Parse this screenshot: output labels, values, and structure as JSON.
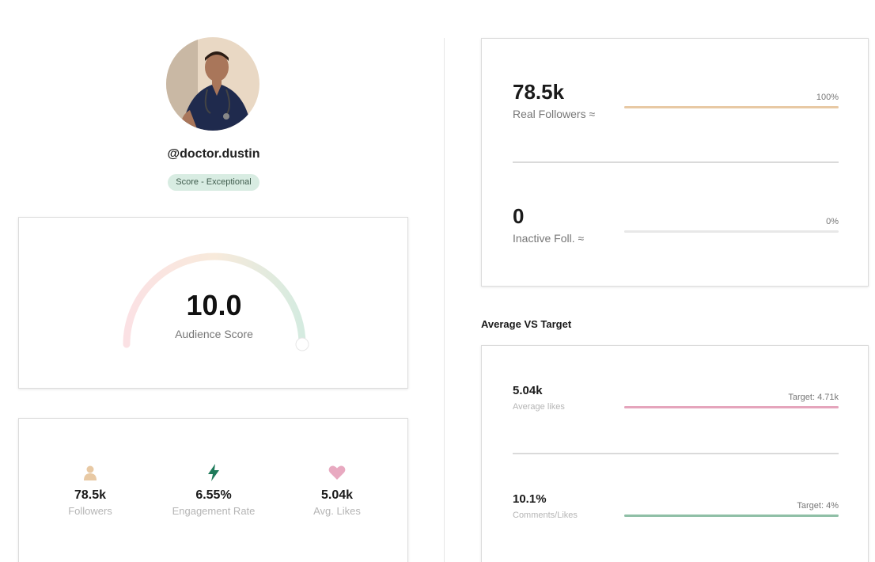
{
  "profile": {
    "handle": "@doctor.dustin",
    "score_badge": "Score - Exceptional"
  },
  "audience": {
    "score": "10.0",
    "label": "Audience Score",
    "level": 1.0
  },
  "stats": [
    {
      "value": "78.5k",
      "label": "Followers",
      "icon": "person-icon",
      "color": "#e8c9a4"
    },
    {
      "value": "6.55%",
      "label": "Engagement Rate",
      "icon": "lightning-icon",
      "color": "#1e7a5a"
    },
    {
      "value": "5.04k",
      "label": "Avg. Likes",
      "icon": "heart-icon",
      "color": "#e8a9c0"
    }
  ],
  "followers": {
    "real": {
      "value": "78.5k",
      "label": "Real Followers ≈",
      "percent_label": "100%",
      "fill": 1.0,
      "color": "#e8c9a4"
    },
    "inactive": {
      "value": "0",
      "label": "Inactive Foll. ≈",
      "percent_label": "0%",
      "fill": 0.0,
      "color": "#e8c9a4"
    }
  },
  "average_vs_target": {
    "title": "Average VS Target",
    "likes": {
      "value": "5.04k",
      "label": "Average likes",
      "target_label": "Target: 4.71k",
      "fill": 1.0,
      "color": "#e5a5bc"
    },
    "comments": {
      "value": "10.1%",
      "label": "Comments/Likes",
      "target_label": "Target: 4%",
      "fill": 1.0,
      "color": "#8fbfa6"
    }
  }
}
